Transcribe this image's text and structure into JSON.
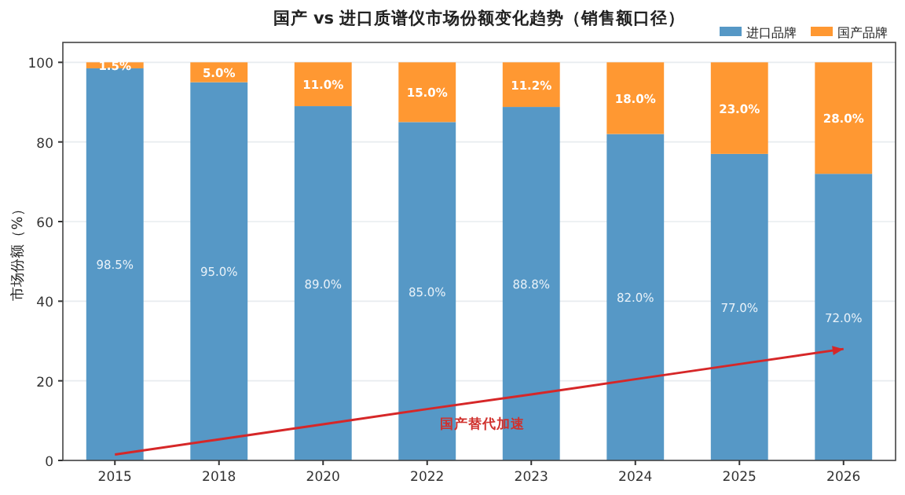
{
  "chart_data": {
    "type": "bar",
    "stacked": true,
    "title": "国产 vs 进口质谱仪市场份额变化趋势（销售额口径）",
    "ylabel": "市场份额（%）",
    "categories": [
      "2015",
      "2018",
      "2020",
      "2022",
      "2023",
      "2024",
      "2025",
      "2026"
    ],
    "series": [
      {
        "name": "进口品牌",
        "color": "#5698c6",
        "values": [
          98.5,
          95.0,
          89.0,
          85.0,
          88.8,
          82.0,
          77.0,
          72.0
        ],
        "value_labels": [
          "98.5%",
          "95.0%",
          "89.0%",
          "85.0%",
          "88.8%",
          "82.0%",
          "77.0%",
          "72.0%"
        ]
      },
      {
        "name": "国产品牌",
        "color": "#ff9832",
        "values": [
          1.5,
          5.0,
          11.0,
          15.0,
          11.2,
          18.0,
          23.0,
          28.0
        ],
        "value_labels": [
          "1.5%",
          "5.0%",
          "11.0%",
          "15.0%",
          "11.2%",
          "18.0%",
          "23.0%",
          "28.0%"
        ]
      },
      {
        "type": "line",
        "color": "#d62728",
        "values": [
          1.5,
          5.3,
          9.1,
          12.9,
          16.6,
          20.4,
          24.2,
          28.0
        ]
      }
    ],
    "annotations": [
      "国产替代加速"
    ],
    "ylim": [
      0,
      105
    ],
    "yticks": [
      0,
      20,
      40,
      60,
      80,
      100
    ],
    "grid": "y",
    "legend": "top right"
  }
}
